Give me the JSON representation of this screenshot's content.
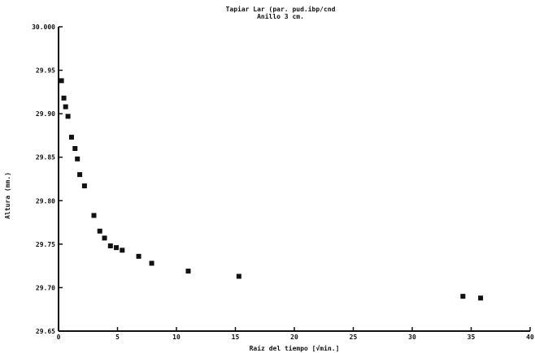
{
  "chart_data": {
    "type": "scatter",
    "title": "Tapiar Lar (par. pud.ibp/cnd",
    "subtitle": "Anillo 3 cm.",
    "xlabel": "Raíz del tiempo [√min.]",
    "ylabel": "Altura (mm.)",
    "xlim": [
      0,
      40
    ],
    "ylim": [
      29.65,
      30.0
    ],
    "x_ticks": [
      0,
      5,
      10,
      15,
      20,
      25,
      30,
      35,
      40
    ],
    "x_tick_labels": [
      "0",
      "5",
      "10",
      "15",
      "20",
      "25",
      "30",
      "35",
      "40"
    ],
    "y_ticks": [
      29.65,
      29.7,
      29.75,
      29.8,
      29.85,
      29.9,
      29.95,
      30.0
    ],
    "y_tick_labels": [
      "29.65",
      "29.70",
      "29.75",
      "29.80",
      "29.85",
      "29.90",
      "29.95",
      "30.000"
    ],
    "grid": false,
    "marker_color": "#111111",
    "points": [
      {
        "x": 0.25,
        "y": 29.938
      },
      {
        "x": 0.45,
        "y": 29.918
      },
      {
        "x": 0.6,
        "y": 29.908
      },
      {
        "x": 0.8,
        "y": 29.897
      },
      {
        "x": 1.1,
        "y": 29.873
      },
      {
        "x": 1.4,
        "y": 29.86
      },
      {
        "x": 1.6,
        "y": 29.848
      },
      {
        "x": 1.8,
        "y": 29.83
      },
      {
        "x": 2.2,
        "y": 29.817
      },
      {
        "x": 3.0,
        "y": 29.783
      },
      {
        "x": 3.5,
        "y": 29.765
      },
      {
        "x": 3.9,
        "y": 29.757
      },
      {
        "x": 4.4,
        "y": 29.748
      },
      {
        "x": 4.9,
        "y": 29.746
      },
      {
        "x": 5.4,
        "y": 29.743
      },
      {
        "x": 6.8,
        "y": 29.736
      },
      {
        "x": 7.9,
        "y": 29.728
      },
      {
        "x": 11.0,
        "y": 29.719
      },
      {
        "x": 15.3,
        "y": 29.713
      },
      {
        "x": 34.3,
        "y": 29.69
      },
      {
        "x": 35.8,
        "y": 29.688
      }
    ]
  }
}
